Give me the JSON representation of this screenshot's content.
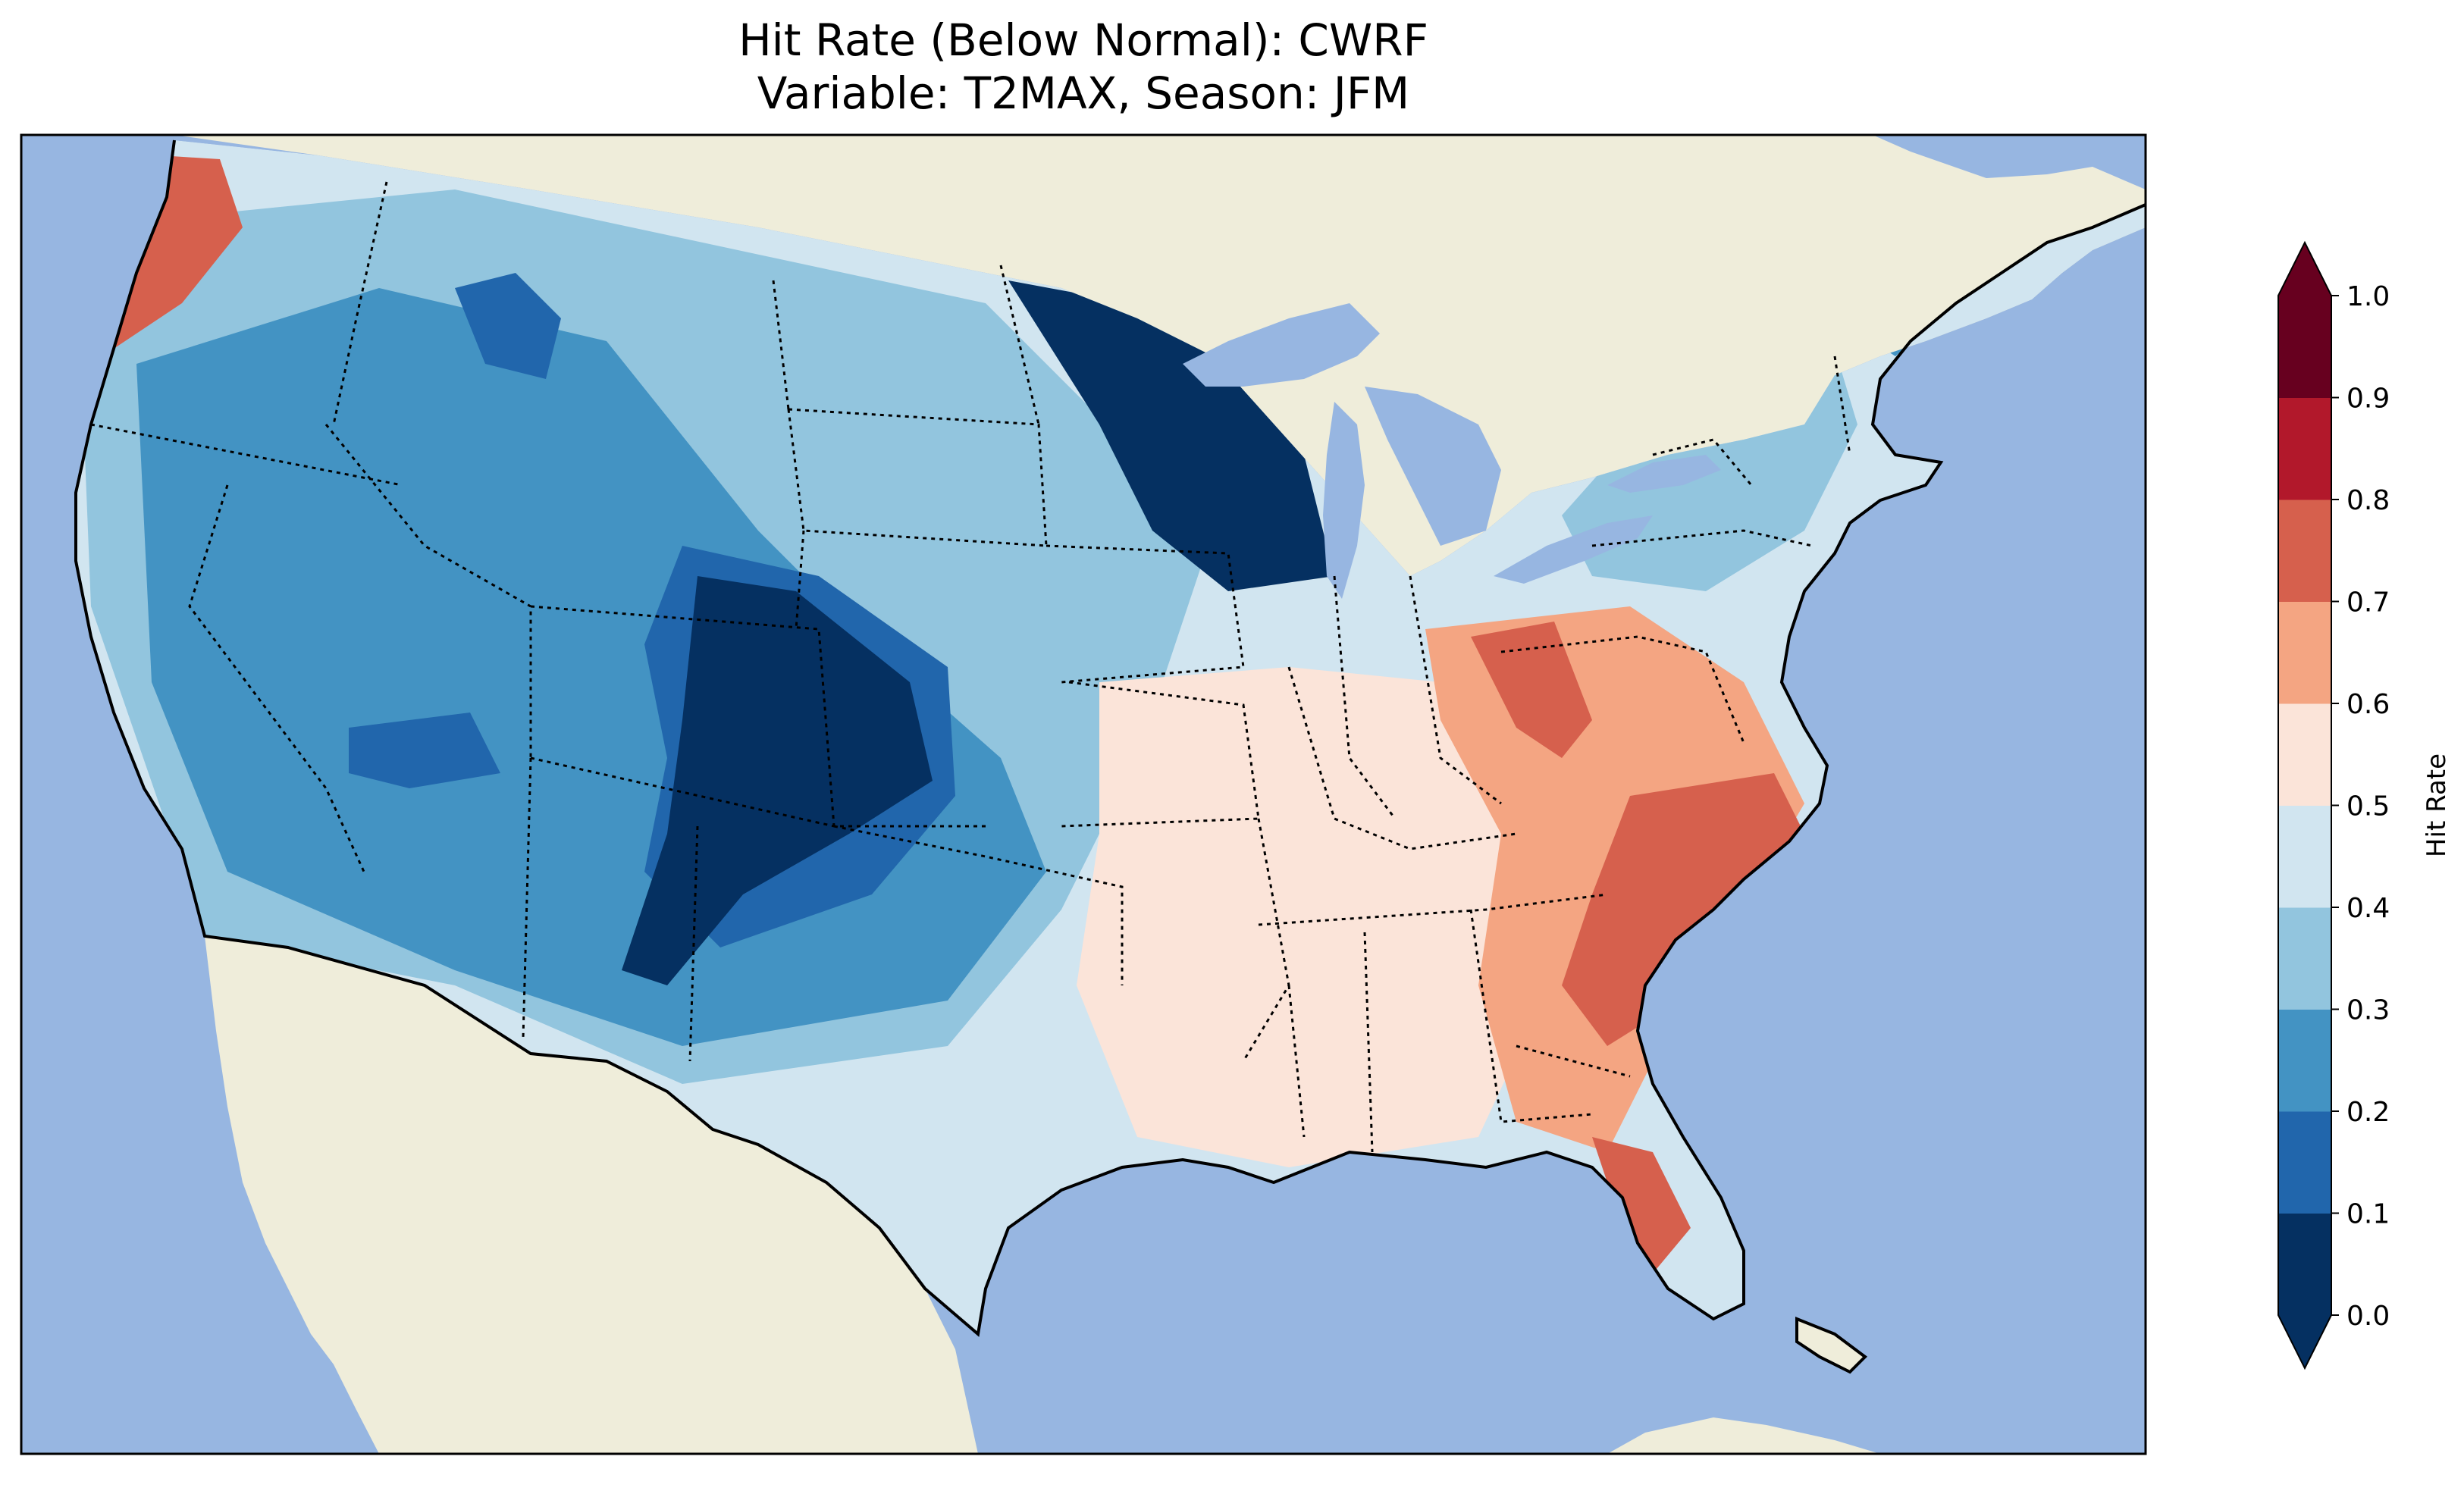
{
  "title": {
    "line1": "Hit Rate (Below Normal): CWRF",
    "line2": "Variable: T2MAX, Season: JFM"
  },
  "colorbar": {
    "label": "Hit Rate",
    "ticks": [
      "0.0",
      "0.1",
      "0.2",
      "0.3",
      "0.4",
      "0.5",
      "0.6",
      "0.7",
      "0.8",
      "0.9",
      "1.0"
    ],
    "colors": [
      "#053061",
      "#2166ac",
      "#4393c3",
      "#92c5de",
      "#d1e5f0",
      "#fbe4d9",
      "#f4a582",
      "#d6604d",
      "#b2182b",
      "#67001f"
    ],
    "extend": "both"
  },
  "map_colors": {
    "ocean": "#97b6e1",
    "land": "#efedda",
    "lakes": "#97b6e1"
  }
}
